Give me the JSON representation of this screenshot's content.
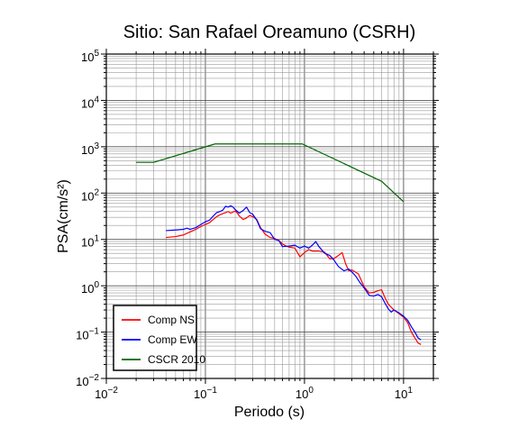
{
  "chart_data": {
    "type": "line",
    "title": "Sitio: San Rafael Oreamuno (CSRH)",
    "xlabel": "Periodo (s)",
    "ylabel": "PSA(cm/s²)",
    "x_scale": "log",
    "y_scale": "log",
    "xlim": [
      0.01,
      20
    ],
    "ylim": [
      0.01,
      100000
    ],
    "grid": true,
    "legend_position": "bottom-left",
    "x_ticks": [
      {
        "value": 0.01,
        "base": "10",
        "exp": "−2"
      },
      {
        "value": 0.1,
        "base": "10",
        "exp": "−1"
      },
      {
        "value": 1,
        "base": "10",
        "exp": "0"
      },
      {
        "value": 10,
        "base": "10",
        "exp": "1"
      }
    ],
    "y_ticks": [
      {
        "value": 0.01,
        "base": "10",
        "exp": "−2"
      },
      {
        "value": 0.1,
        "base": "10",
        "exp": "−1"
      },
      {
        "value": 1,
        "base": "10",
        "exp": "0"
      },
      {
        "value": 10,
        "base": "10",
        "exp": "1"
      },
      {
        "value": 100,
        "base": "10",
        "exp": "2"
      },
      {
        "value": 1000,
        "base": "10",
        "exp": "3"
      },
      {
        "value": 10000,
        "base": "10",
        "exp": "4"
      },
      {
        "value": 100000,
        "base": "10",
        "exp": "5"
      }
    ],
    "series": [
      {
        "name": "Comp NS",
        "color": "#ff0000",
        "points": [
          [
            0.04,
            11
          ],
          [
            0.05,
            11.5
          ],
          [
            0.06,
            12.5
          ],
          [
            0.07,
            14.5
          ],
          [
            0.08,
            16.5
          ],
          [
            0.09,
            19
          ],
          [
            0.1,
            21
          ],
          [
            0.11,
            23
          ],
          [
            0.12,
            27
          ],
          [
            0.13,
            31
          ],
          [
            0.14,
            34
          ],
          [
            0.15,
            36
          ],
          [
            0.16,
            38
          ],
          [
            0.17,
            40
          ],
          [
            0.18,
            37
          ],
          [
            0.19,
            39
          ],
          [
            0.2,
            41
          ],
          [
            0.21,
            37
          ],
          [
            0.22,
            32
          ],
          [
            0.24,
            27
          ],
          [
            0.26,
            29
          ],
          [
            0.28,
            33
          ],
          [
            0.3,
            31
          ],
          [
            0.33,
            27
          ],
          [
            0.36,
            18
          ],
          [
            0.4,
            13
          ],
          [
            0.45,
            11
          ],
          [
            0.5,
            10.5
          ],
          [
            0.55,
            9.5
          ],
          [
            0.6,
            8
          ],
          [
            0.65,
            7.2
          ],
          [
            0.7,
            6.8
          ],
          [
            0.8,
            6.5
          ],
          [
            0.9,
            4.2
          ],
          [
            1.0,
            5.2
          ],
          [
            1.1,
            6
          ],
          [
            1.2,
            5.6
          ],
          [
            1.4,
            5.6
          ],
          [
            1.6,
            5.3
          ],
          [
            1.8,
            3.8
          ],
          [
            2.0,
            3.9
          ],
          [
            2.2,
            4.5
          ],
          [
            2.4,
            5.2
          ],
          [
            2.6,
            3
          ],
          [
            2.8,
            2.1
          ],
          [
            3.0,
            2.2
          ],
          [
            3.5,
            1.8
          ],
          [
            4.0,
            0.95
          ],
          [
            4.5,
            0.7
          ],
          [
            5.0,
            0.72
          ],
          [
            5.5,
            0.78
          ],
          [
            6.0,
            0.82
          ],
          [
            6.5,
            0.55
          ],
          [
            7.0,
            0.4
          ],
          [
            8.0,
            0.3
          ],
          [
            9.0,
            0.25
          ],
          [
            10.0,
            0.21
          ],
          [
            11.0,
            0.16
          ],
          [
            12.0,
            0.1
          ],
          [
            13.0,
            0.075
          ],
          [
            14.0,
            0.058
          ],
          [
            15.0,
            0.054
          ]
        ]
      },
      {
        "name": "Comp EW",
        "color": "#0000ff",
        "points": [
          [
            0.04,
            15.5
          ],
          [
            0.05,
            16
          ],
          [
            0.06,
            16.5
          ],
          [
            0.065,
            17.5
          ],
          [
            0.07,
            16.5
          ],
          [
            0.08,
            18
          ],
          [
            0.09,
            21
          ],
          [
            0.1,
            24
          ],
          [
            0.11,
            26
          ],
          [
            0.12,
            32
          ],
          [
            0.13,
            38
          ],
          [
            0.14,
            40
          ],
          [
            0.15,
            43
          ],
          [
            0.16,
            52
          ],
          [
            0.17,
            50
          ],
          [
            0.18,
            53
          ],
          [
            0.19,
            50
          ],
          [
            0.2,
            44
          ],
          [
            0.22,
            37
          ],
          [
            0.24,
            42
          ],
          [
            0.26,
            50
          ],
          [
            0.28,
            38
          ],
          [
            0.3,
            35
          ],
          [
            0.33,
            26
          ],
          [
            0.36,
            17
          ],
          [
            0.4,
            15
          ],
          [
            0.45,
            14
          ],
          [
            0.5,
            10
          ],
          [
            0.55,
            9.5
          ],
          [
            0.6,
            7
          ],
          [
            0.7,
            7.2
          ],
          [
            0.8,
            7.5
          ],
          [
            0.9,
            6.5
          ],
          [
            1.0,
            7.2
          ],
          [
            1.1,
            6.5
          ],
          [
            1.2,
            7.5
          ],
          [
            1.3,
            9
          ],
          [
            1.4,
            7
          ],
          [
            1.6,
            5
          ],
          [
            1.8,
            4.5
          ],
          [
            2.0,
            3.5
          ],
          [
            2.2,
            2.6
          ],
          [
            2.5,
            2.1
          ],
          [
            2.8,
            2.3
          ],
          [
            3.0,
            2
          ],
          [
            3.3,
            1.6
          ],
          [
            3.6,
            1.2
          ],
          [
            4.0,
            0.9
          ],
          [
            4.5,
            0.62
          ],
          [
            5.0,
            0.6
          ],
          [
            5.5,
            0.65
          ],
          [
            6.0,
            0.58
          ],
          [
            6.5,
            0.42
          ],
          [
            7.0,
            0.32
          ],
          [
            7.5,
            0.27
          ],
          [
            8.0,
            0.3
          ],
          [
            9.0,
            0.26
          ],
          [
            10.0,
            0.22
          ],
          [
            11.0,
            0.18
          ],
          [
            12.0,
            0.13
          ],
          [
            13.0,
            0.1
          ],
          [
            14.0,
            0.075
          ],
          [
            15.0,
            0.068
          ]
        ]
      },
      {
        "name": "CSCR 2010",
        "color": "#006400",
        "points": [
          [
            0.02,
            460
          ],
          [
            0.03,
            460
          ],
          [
            0.125,
            1150
          ],
          [
            0.95,
            1150
          ],
          [
            6.0,
            180
          ],
          [
            10.0,
            65
          ]
        ]
      }
    ]
  }
}
